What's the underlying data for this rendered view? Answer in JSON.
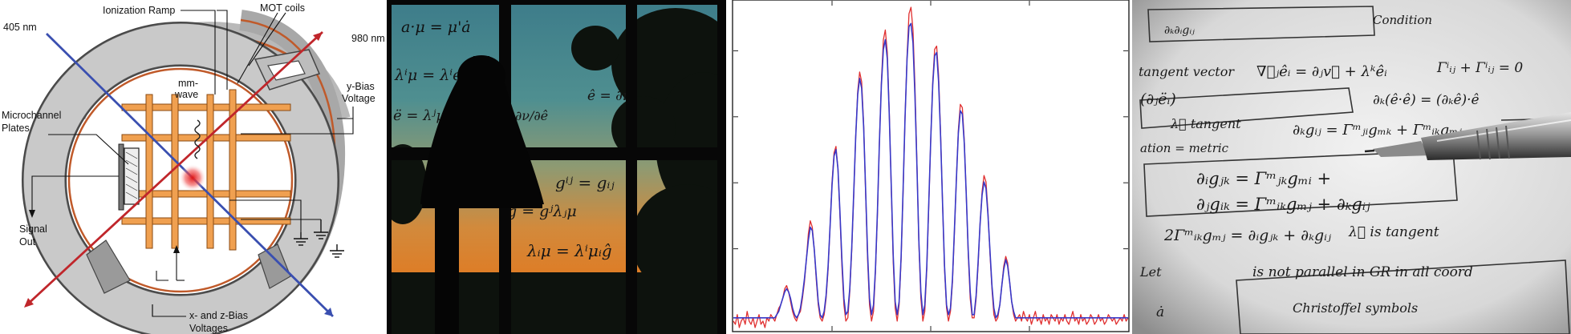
{
  "diagram": {
    "labels": {
      "beam_405": "405 nm",
      "ionization_ramp": "Ionization Ramp",
      "mot_coils": "MOT coils",
      "beam_980": "980 nm",
      "mm_wave_1": "mm-",
      "mm_wave_2": "wave",
      "y_bias_1": "y-Bias",
      "y_bias_2": "Voltage",
      "mcp_1": "Microchannel",
      "mcp_2": "Plates",
      "signal_1": "Signal",
      "signal_2": "Out",
      "xz_bias_1": "x- and z-Bias",
      "xz_bias_2": "Voltages"
    },
    "colors": {
      "beam_405": "#3a4fb0",
      "beam_980": "#c0262b",
      "ring": "#c8c8c8",
      "electrode": "#f0a050",
      "coil_copper": "#c05a2a"
    }
  },
  "photo_window": {
    "equations": {
      "e1": "a·μ = μ'ȧ",
      "e2": "λⁱμ = λⁱe'ⁱ",
      "e3": "ë = λʲμ",
      "e4": "ê = ∂ν",
      "e5": "∂ν/∂ê",
      "e6": "gⁱʲ = gᵢⱼ",
      "e7": "ĝ = gʲλⱼμ",
      "e8": "λᵢμ = λⁱμᵢĝ"
    }
  },
  "chart_data": {
    "type": "line",
    "x": [
      0,
      0.5,
      1,
      1.5,
      2,
      2.5,
      3,
      3.5,
      4,
      4.5,
      5,
      5.5,
      6,
      6.5,
      7,
      7.5,
      8,
      8.5,
      9,
      9.5,
      10,
      10.5,
      11,
      11.5,
      12,
      12.5,
      13,
      13.5,
      14,
      14.5,
      15,
      15.5,
      16,
      16.5,
      17,
      17.5,
      18,
      18.5,
      19,
      19.5,
      20,
      20.5,
      21,
      21.5,
      22,
      22.5,
      23,
      23.5,
      24,
      24.5,
      25,
      25.5,
      26,
      26.5,
      27,
      27.5,
      28,
      28.5,
      29,
      29.5,
      30,
      30.5,
      31,
      31.5,
      32,
      32.5,
      33,
      33.5,
      34,
      34.5,
      35,
      35.5,
      36,
      36.5,
      37,
      37.5,
      38,
      38.5,
      39,
      39.5,
      40,
      40.5,
      41,
      41.5,
      42,
      42.5,
      43,
      43.5,
      44,
      44.5,
      45,
      45.5,
      46,
      46.5,
      47,
      47.5,
      48,
      48.5,
      49,
      49.5,
      50,
      50.5,
      51,
      51.5,
      52,
      52.5,
      53,
      53.5,
      54,
      54.5,
      55,
      55.5,
      56,
      56.5,
      57,
      57.5,
      58,
      58.5,
      59,
      59.5,
      60,
      60.5,
      61,
      61.5,
      62,
      62.5,
      63,
      63.5,
      64,
      64.5,
      65,
      65.5,
      66,
      66.5,
      67,
      67.5,
      68,
      68.5,
      69,
      69.5,
      70,
      70.5,
      71,
      71.5,
      72,
      72.5,
      73,
      73.5,
      74,
      74.5,
      75,
      75.5,
      76,
      76.5,
      77,
      77.5,
      78,
      78.5,
      79,
      79.5,
      80,
      80.5,
      81,
      81.5,
      82,
      82.5,
      83,
      83.5,
      84,
      84.5,
      85,
      85.5,
      86,
      86.5,
      87,
      87.5,
      88,
      88.5,
      89,
      89.5,
      90,
      90.5,
      91,
      91.5,
      92,
      92.5,
      93,
      93.5,
      94,
      94.5,
      95,
      95.5,
      96,
      96.5,
      97,
      97.5,
      98,
      98.5,
      99,
      99.5,
      100
    ],
    "series": [
      {
        "color": "#e03030",
        "values": [
          0.03,
          0.02,
          0.05,
          0.01,
          0.03,
          0.04,
          0.02,
          0.06,
          0.03,
          0.02,
          0.04,
          0.01,
          0.03,
          0.05,
          0.02,
          0.03,
          0.01,
          0.04,
          0.03,
          0.05,
          0.04,
          0.03,
          0.05,
          0.07,
          0.08,
          0.1,
          0.13,
          0.14,
          0.12,
          0.09,
          0.06,
          0.04,
          0.03,
          0.05,
          0.06,
          0.1,
          0.15,
          0.22,
          0.3,
          0.34,
          0.32,
          0.25,
          0.16,
          0.08,
          0.04,
          0.03,
          0.05,
          0.1,
          0.19,
          0.32,
          0.46,
          0.55,
          0.57,
          0.5,
          0.36,
          0.2,
          0.08,
          0.03,
          0.04,
          0.12,
          0.25,
          0.42,
          0.6,
          0.74,
          0.8,
          0.77,
          0.64,
          0.43,
          0.22,
          0.08,
          0.03,
          0.06,
          0.18,
          0.36,
          0.58,
          0.77,
          0.9,
          0.93,
          0.86,
          0.68,
          0.44,
          0.21,
          0.07,
          0.03,
          0.08,
          0.22,
          0.43,
          0.66,
          0.85,
          0.98,
          1.0,
          0.93,
          0.76,
          0.52,
          0.27,
          0.1,
          0.03,
          0.06,
          0.19,
          0.38,
          0.59,
          0.77,
          0.87,
          0.88,
          0.79,
          0.61,
          0.39,
          0.19,
          0.07,
          0.03,
          0.06,
          0.15,
          0.3,
          0.47,
          0.62,
          0.7,
          0.69,
          0.59,
          0.42,
          0.24,
          0.1,
          0.04,
          0.04,
          0.1,
          0.2,
          0.33,
          0.43,
          0.48,
          0.46,
          0.37,
          0.24,
          0.13,
          0.05,
          0.03,
          0.04,
          0.08,
          0.14,
          0.2,
          0.23,
          0.21,
          0.15,
          0.09,
          0.05,
          0.03,
          0.04,
          0.05,
          0.03,
          0.06,
          0.04,
          0.03,
          0.05,
          0.02,
          0.04,
          0.06,
          0.03,
          0.04,
          0.02,
          0.05,
          0.03,
          0.04,
          0.02,
          0.05,
          0.04,
          0.03,
          0.05,
          0.02,
          0.04,
          0.03,
          0.05,
          0.03,
          0.02,
          0.04,
          0.06,
          0.03,
          0.04,
          0.02,
          0.05,
          0.03,
          0.04,
          0.02,
          0.03,
          0.05,
          0.04,
          0.02,
          0.03,
          0.05,
          0.03,
          0.04,
          0.02,
          0.03,
          0.05,
          0.04,
          0.03,
          0.04,
          0.02,
          0.03,
          0.04,
          0.03,
          0.05,
          0.03,
          0.04
        ]
      },
      {
        "color": "#3838c8",
        "values": [
          0.04,
          0.04,
          0.04,
          0.04,
          0.04,
          0.04,
          0.04,
          0.04,
          0.04,
          0.04,
          0.04,
          0.04,
          0.04,
          0.04,
          0.04,
          0.04,
          0.04,
          0.04,
          0.04,
          0.04,
          0.04,
          0.04,
          0.05,
          0.06,
          0.08,
          0.1,
          0.12,
          0.13,
          0.12,
          0.1,
          0.07,
          0.05,
          0.04,
          0.05,
          0.07,
          0.11,
          0.16,
          0.22,
          0.28,
          0.32,
          0.31,
          0.25,
          0.17,
          0.09,
          0.05,
          0.04,
          0.06,
          0.11,
          0.2,
          0.32,
          0.45,
          0.54,
          0.56,
          0.5,
          0.37,
          0.22,
          0.1,
          0.05,
          0.06,
          0.13,
          0.26,
          0.43,
          0.6,
          0.73,
          0.78,
          0.75,
          0.63,
          0.44,
          0.24,
          0.1,
          0.05,
          0.08,
          0.19,
          0.37,
          0.58,
          0.76,
          0.87,
          0.9,
          0.84,
          0.67,
          0.45,
          0.23,
          0.09,
          0.05,
          0.09,
          0.23,
          0.44,
          0.66,
          0.84,
          0.94,
          0.95,
          0.89,
          0.73,
          0.51,
          0.28,
          0.12,
          0.05,
          0.08,
          0.2,
          0.39,
          0.59,
          0.76,
          0.85,
          0.86,
          0.77,
          0.6,
          0.39,
          0.2,
          0.08,
          0.05,
          0.07,
          0.16,
          0.31,
          0.47,
          0.61,
          0.68,
          0.67,
          0.58,
          0.42,
          0.25,
          0.12,
          0.05,
          0.05,
          0.11,
          0.21,
          0.33,
          0.42,
          0.46,
          0.44,
          0.36,
          0.25,
          0.14,
          0.07,
          0.04,
          0.05,
          0.08,
          0.14,
          0.19,
          0.22,
          0.2,
          0.15,
          0.09,
          0.06,
          0.04,
          0.04,
          0.04,
          0.04,
          0.04,
          0.04,
          0.04,
          0.04,
          0.04,
          0.04,
          0.04,
          0.04,
          0.04,
          0.04,
          0.04,
          0.04,
          0.04,
          0.04,
          0.04,
          0.04,
          0.04,
          0.04,
          0.04,
          0.04,
          0.04,
          0.04,
          0.04,
          0.04,
          0.04,
          0.04,
          0.04,
          0.04,
          0.04,
          0.04,
          0.04,
          0.04,
          0.04,
          0.04,
          0.04,
          0.04,
          0.04,
          0.04,
          0.04,
          0.04,
          0.04,
          0.04,
          0.04,
          0.04,
          0.04,
          0.04,
          0.04,
          0.04,
          0.04,
          0.04,
          0.04,
          0.04,
          0.04,
          0.04
        ]
      }
    ],
    "title": "",
    "xlabel": "",
    "ylabel": "",
    "xlim": [
      0,
      100
    ],
    "ylim": [
      0,
      1.02
    ],
    "grid": false,
    "legend": "none"
  },
  "photo_notebook": {
    "lines": {
      "n1": "Condition",
      "n2": "∂ₖ∂ᵢgᵢⱼ",
      "n3": "tangent vector",
      "n4": "∇⃗ⱼêᵢ = ∂ⱼv⃗ + λᵏêᵢ",
      "n5": "Γⁱᵢⱼ + Γⁱᵢⱼ = 0",
      "n6": "(∂ⱼëᵢ)",
      "n7": "∂ₖ(ê·ê) = (∂ₖê)·ê",
      "n8": "λ⃗  tangent",
      "n9": "∂ₖgᵢⱼ = Γᵐⱼᵢgₘₖ + Γᵐᵢₖgₘⱼ",
      "n10": "ation = metric",
      "n11": "∂ᵢgⱼₖ = Γᵐⱼₖgₘᵢ +",
      "n12": "∂ⱼgᵢₖ = Γᵐᵢₖgₘⱼ + ∂ₖgᵢⱼ",
      "n13": "2Γᵐᵢₖgₘⱼ = ∂ᵢgⱼₖ + ∂ₖgᵢⱼ",
      "n14": "λ⃗ is tangent",
      "n15": "is not parallel in GR in all coord",
      "n16": "Christoffel symbols",
      "n17": "Let",
      "n18": "ȧ"
    }
  }
}
